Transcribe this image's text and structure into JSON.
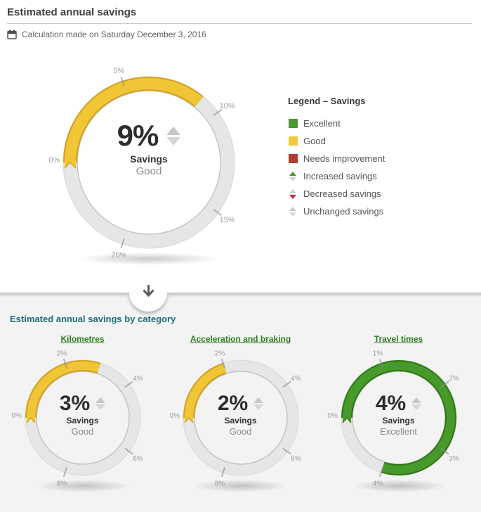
{
  "header": {
    "title": "Estimated annual savings",
    "calculation_note": "Calculation made on Saturday December 3, 2016"
  },
  "legend": {
    "title": "Legend – Savings",
    "items": [
      {
        "label": "Excellent",
        "type": "swatch",
        "color": "#4a9733"
      },
      {
        "label": "Good",
        "type": "swatch",
        "color": "#f0c83d"
      },
      {
        "label": "Needs improvement",
        "type": "swatch",
        "color": "#ad3d2f"
      },
      {
        "label": "Increased savings",
        "type": "arrows",
        "up_color": "#4a9733",
        "down_color": "#d2d2d2"
      },
      {
        "label": "Decreased savings",
        "type": "arrows",
        "up_color": "#d2d2d2",
        "down_color": "#b8342a"
      },
      {
        "label": "Unchanged savings",
        "type": "arrows",
        "up_color": "#cccccc",
        "down_color": "#d8d8d8"
      }
    ]
  },
  "category_section": {
    "title": "Estimated annual savings by category"
  },
  "colors": {
    "accent_teal": "#1a6e79",
    "link_green": "#2e7d20",
    "track_gray": "#e6e6e6",
    "tick_label_gray": "#9b9b9b"
  },
  "chart_data": [
    {
      "type": "gauge",
      "display_value": "9%",
      "value": 9,
      "min": 0,
      "max": 25,
      "unit": "%",
      "center_label": "Savings",
      "status": "Good",
      "trend": "unchanged",
      "arc_color": "#f0c636",
      "arc_edge_color": "#d5a21d",
      "tick_values": [
        0,
        5,
        10,
        15,
        20
      ],
      "tick_labels": [
        "0%",
        "5%",
        "10%",
        "15%",
        "20%"
      ]
    },
    {
      "type": "gauge",
      "name": "Kilometres",
      "display_value": "3%",
      "value": 3,
      "min": 0,
      "max": 10,
      "unit": "%",
      "center_label": "Savings",
      "status": "Good",
      "trend": "unchanged",
      "arc_color": "#f0c636",
      "arc_edge_color": "#d5a21d",
      "tick_values": [
        0,
        2,
        4,
        6,
        8
      ],
      "tick_labels": [
        "0%",
        "2%",
        "4%",
        "6%",
        "8%"
      ]
    },
    {
      "type": "gauge",
      "name": "Acceleration and braking",
      "display_value": "2%",
      "value": 2,
      "min": 0,
      "max": 10,
      "unit": "%",
      "center_label": "Savings",
      "status": "Good",
      "trend": "unchanged",
      "arc_color": "#f0c636",
      "arc_edge_color": "#d5a21d",
      "tick_values": [
        0,
        2,
        4,
        6,
        8
      ],
      "tick_labels": [
        "0%",
        "2%",
        "4%",
        "6%",
        "8%"
      ]
    },
    {
      "type": "gauge",
      "name": "Travel times",
      "display_value": "4%",
      "value": 4,
      "min": 0,
      "max": 5,
      "unit": "%",
      "center_label": "Savings",
      "status": "Excellent",
      "trend": "unchanged",
      "arc_color": "#47992c",
      "arc_edge_color": "#2d7a14",
      "tick_values": [
        0,
        1,
        2,
        3,
        4
      ],
      "tick_labels": [
        "0%",
        "1%",
        "2%",
        "3%",
        "4%"
      ]
    }
  ]
}
